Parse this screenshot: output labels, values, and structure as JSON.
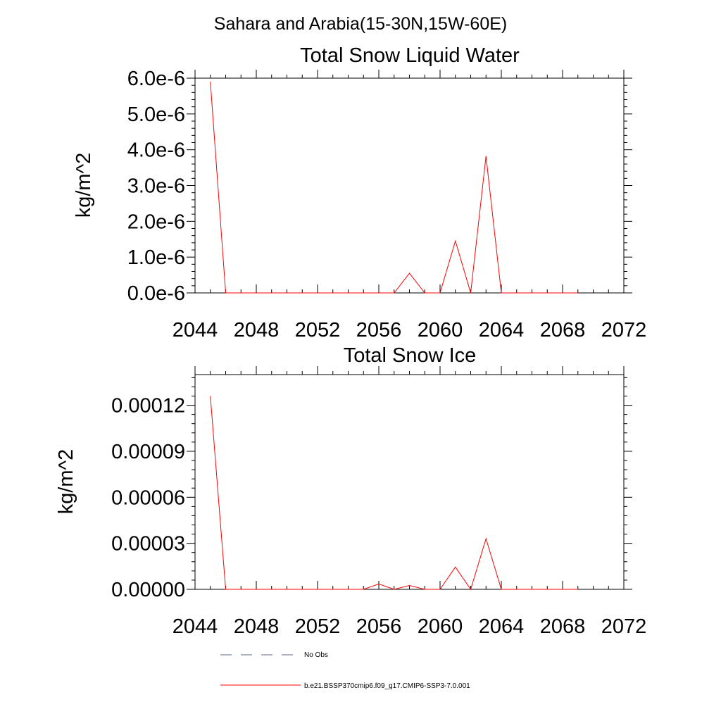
{
  "figure": {
    "suptitle": "Sahara and Arabia(15-30N,15W-60E)"
  },
  "chart_data": [
    {
      "type": "line",
      "title": "Total Snow Liquid Water",
      "xlabel": "",
      "ylabel": "kg/m^2",
      "xlim": [
        2044,
        2072
      ],
      "ylim": [
        0,
        6e-06
      ],
      "xticks": [
        "2044",
        "2048",
        "2052",
        "2056",
        "2060",
        "2064",
        "2068",
        "2072"
      ],
      "yticks": [
        "0.0e-6",
        "1.0e-6",
        "2.0e-6",
        "3.0e-6",
        "4.0e-6",
        "5.0e-6",
        "6.0e-6"
      ],
      "ytick_values": [
        0,
        1e-06,
        2e-06,
        3e-06,
        4e-06,
        5e-06,
        6e-06
      ],
      "grid": false,
      "series": [
        {
          "name": "b.e21.BSSP370cmip6.f09_g17.CMIP6-SSP3-7.0.001",
          "color": "#ff0000",
          "x": [
            2045,
            2046,
            2047,
            2048,
            2049,
            2050,
            2051,
            2052,
            2053,
            2054,
            2055,
            2056,
            2057,
            2058,
            2059,
            2060,
            2061,
            2062,
            2063,
            2064,
            2065,
            2066,
            2067,
            2068,
            2069
          ],
          "y": [
            5.9e-06,
            0,
            0,
            0,
            0,
            0,
            0,
            0,
            0,
            0,
            0,
            0,
            0,
            5.5e-07,
            0,
            0,
            1.45e-06,
            0,
            3.82e-06,
            0,
            0,
            0,
            0,
            0,
            0
          ]
        }
      ]
    },
    {
      "type": "line",
      "title": "Total Snow Ice",
      "xlabel": "",
      "ylabel": "kg/m^2",
      "xlim": [
        2044,
        2072
      ],
      "ylim": [
        0,
        0.00014
      ],
      "xticks": [
        "2044",
        "2048",
        "2052",
        "2056",
        "2060",
        "2064",
        "2068",
        "2072"
      ],
      "yticks": [
        "0.00000",
        "0.00003",
        "0.00006",
        "0.00009",
        "0.00012"
      ],
      "ytick_values": [
        0,
        3e-05,
        6e-05,
        9e-05,
        0.00012
      ],
      "grid": false,
      "series": [
        {
          "name": "b.e21.BSSP370cmip6.f09_g17.CMIP6-SSP3-7.0.001",
          "color": "#ff0000",
          "x": [
            2045,
            2046,
            2047,
            2048,
            2049,
            2050,
            2051,
            2052,
            2053,
            2054,
            2055,
            2056,
            2057,
            2058,
            2059,
            2060,
            2061,
            2062,
            2063,
            2064,
            2065,
            2066,
            2067,
            2068,
            2069
          ],
          "y": [
            0.000126,
            0,
            0,
            0,
            0,
            0,
            0,
            0,
            0,
            0,
            0,
            3.5e-06,
            0,
            2.5e-06,
            0,
            0,
            1.45e-05,
            0,
            3.3e-05,
            0,
            0,
            0,
            0,
            0,
            0
          ]
        }
      ]
    }
  ],
  "legend": {
    "placement": "bottom",
    "items": [
      {
        "label": "No Obs",
        "style": "dashed",
        "color": "#5b6a8c"
      },
      {
        "label": "b.e21.BSSP370cmip6.f09_g17.CMIP6-SSP3-7.0.001",
        "style": "solid",
        "color": "#ff0000"
      }
    ]
  }
}
